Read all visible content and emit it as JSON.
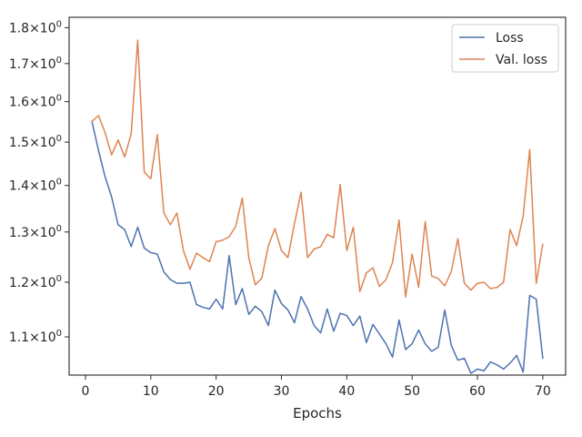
{
  "chart_data": {
    "type": "line",
    "title": "",
    "xlabel": "Epochs",
    "ylabel": "",
    "yscale": "log",
    "xlim": [
      -2.5,
      73.5
    ],
    "ylim": [
      1.035,
      1.83
    ],
    "grid": false,
    "legend_position": "top-right",
    "x_ticks": [
      {
        "value": 0,
        "label": "0"
      },
      {
        "value": 10,
        "label": "10"
      },
      {
        "value": 20,
        "label": "20"
      },
      {
        "value": 30,
        "label": "30"
      },
      {
        "value": 40,
        "label": "40"
      },
      {
        "value": 50,
        "label": "50"
      },
      {
        "value": 60,
        "label": "60"
      },
      {
        "value": 70,
        "label": "70"
      }
    ],
    "y_ticks": [
      {
        "value": 1.1,
        "base": "1.1",
        "exp": "0"
      },
      {
        "value": 1.2,
        "base": "1.2",
        "exp": "0"
      },
      {
        "value": 1.3,
        "base": "1.3",
        "exp": "0"
      },
      {
        "value": 1.4,
        "base": "1.4",
        "exp": "0"
      },
      {
        "value": 1.5,
        "base": "1.5",
        "exp": "0"
      },
      {
        "value": 1.6,
        "base": "1.6",
        "exp": "0"
      },
      {
        "value": 1.7,
        "base": "1.7",
        "exp": "0"
      },
      {
        "value": 1.8,
        "base": "1.8",
        "exp": "0"
      }
    ],
    "x": [
      1,
      2,
      3,
      4,
      5,
      6,
      7,
      8,
      9,
      10,
      11,
      12,
      13,
      14,
      15,
      16,
      17,
      18,
      19,
      20,
      21,
      22,
      23,
      24,
      25,
      26,
      27,
      28,
      29,
      30,
      31,
      32,
      33,
      34,
      35,
      36,
      37,
      38,
      39,
      40,
      41,
      42,
      43,
      44,
      45,
      46,
      47,
      48,
      49,
      50,
      51,
      52,
      53,
      54,
      55,
      56,
      57,
      58,
      59,
      60,
      61,
      62,
      63,
      64,
      65,
      66,
      67,
      68,
      69,
      70
    ],
    "series": [
      {
        "name": "Loss",
        "color": "#4c72b0",
        "values": [
          1.55,
          1.48,
          1.42,
          1.375,
          1.315,
          1.305,
          1.27,
          1.31,
          1.267,
          1.258,
          1.255,
          1.22,
          1.205,
          1.198,
          1.198,
          1.2,
          1.158,
          1.153,
          1.15,
          1.168,
          1.15,
          1.252,
          1.158,
          1.188,
          1.14,
          1.155,
          1.145,
          1.12,
          1.185,
          1.16,
          1.148,
          1.125,
          1.173,
          1.15,
          1.12,
          1.107,
          1.15,
          1.11,
          1.142,
          1.138,
          1.12,
          1.137,
          1.09,
          1.122,
          1.105,
          1.088,
          1.065,
          1.13,
          1.078,
          1.088,
          1.112,
          1.088,
          1.075,
          1.082,
          1.148,
          1.085,
          1.06,
          1.063,
          1.038,
          1.045,
          1.042,
          1.057,
          1.052,
          1.045,
          1.055,
          1.068,
          1.04,
          1.175,
          1.168,
          1.063
        ]
      },
      {
        "name": "Val. loss",
        "color": "#dd8452",
        "values": [
          1.55,
          1.565,
          1.523,
          1.47,
          1.505,
          1.465,
          1.52,
          1.765,
          1.43,
          1.415,
          1.518,
          1.34,
          1.315,
          1.34,
          1.262,
          1.225,
          1.257,
          1.248,
          1.24,
          1.28,
          1.283,
          1.29,
          1.312,
          1.372,
          1.248,
          1.195,
          1.208,
          1.272,
          1.307,
          1.262,
          1.248,
          1.318,
          1.385,
          1.248,
          1.265,
          1.27,
          1.295,
          1.288,
          1.402,
          1.262,
          1.31,
          1.182,
          1.218,
          1.228,
          1.192,
          1.205,
          1.238,
          1.325,
          1.172,
          1.255,
          1.19,
          1.322,
          1.212,
          1.207,
          1.193,
          1.221,
          1.286,
          1.198,
          1.185,
          1.198,
          1.2,
          1.188,
          1.19,
          1.2,
          1.305,
          1.272,
          1.333,
          1.482,
          1.198,
          1.275
        ]
      }
    ]
  }
}
